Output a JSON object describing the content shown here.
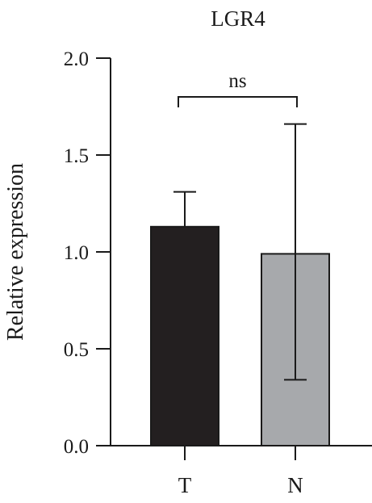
{
  "chart_data": {
    "type": "bar",
    "title": "LGR4",
    "xlabel": "",
    "ylabel": "Relative expression",
    "categories": [
      "T",
      "N"
    ],
    "values": [
      1.13,
      0.99
    ],
    "error_bars": [
      {
        "upper": 1.31,
        "lower": 1.13
      },
      {
        "upper": 1.66,
        "lower": 0.34
      }
    ],
    "bar_colors": [
      "#231f20",
      "#a7a9ac"
    ],
    "ylim": [
      0,
      2.0
    ],
    "yticks": [
      "0.0",
      "0.5",
      "1.0",
      "1.5",
      "2.0"
    ],
    "ytick_values": [
      0,
      0.5,
      1.0,
      1.5,
      2.0
    ],
    "significance": {
      "label": "ns",
      "between": [
        "T",
        "N"
      ],
      "y": 1.8
    },
    "grid": false,
    "legend": "none"
  }
}
